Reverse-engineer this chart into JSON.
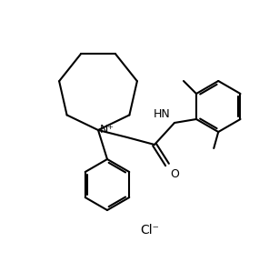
{
  "background_color": "#ffffff",
  "line_color": "#000000",
  "line_width": 1.5,
  "font_size": 9,
  "cl_label": "Cl⁻",
  "n_label": "N⁺",
  "hn_label": "HN",
  "o_label": "O"
}
